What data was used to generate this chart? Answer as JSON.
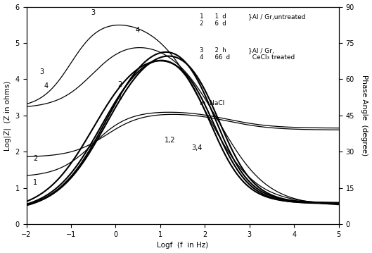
{
  "xlabel": "Logf  (f  in Hz)",
  "ylabel_left": "Log|Z|  (Z in ohms)",
  "ylabel_right": "Phase Angle  (degree)",
  "xlim": [
    -2,
    5
  ],
  "ylim_left": [
    0,
    6
  ],
  "ylim_right": [
    0,
    90
  ],
  "xticks": [
    -2,
    -1,
    0,
    1,
    2,
    3,
    4,
    5
  ],
  "yticks_left": [
    0,
    1,
    2,
    3,
    4,
    5,
    6
  ],
  "yticks_right": [
    0,
    15,
    30,
    45,
    60,
    75,
    90
  ],
  "legend_note": "in  NaCl"
}
